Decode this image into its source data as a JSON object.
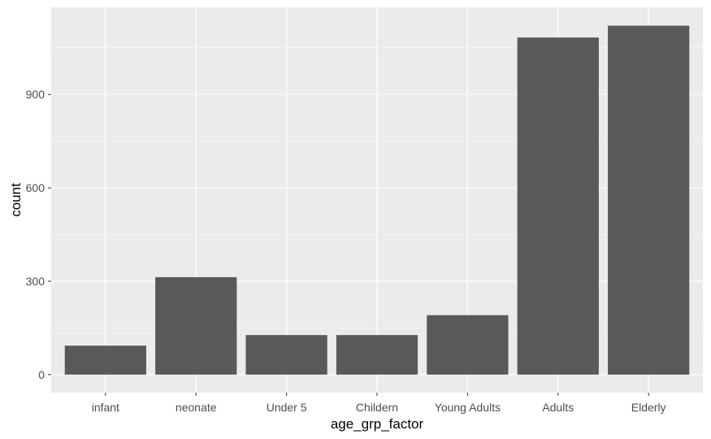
{
  "chart_data": {
    "type": "bar",
    "categories": [
      "infant",
      "neonate",
      "Under 5",
      "Childern",
      "Young Adults",
      "Adults",
      "Elderly"
    ],
    "values": [
      93,
      313,
      127,
      127,
      191,
      1083,
      1121
    ],
    "xlabel": "age_grp_factor",
    "ylabel": "count",
    "ylim": [
      -58,
      1180
    ],
    "yticks": [
      0,
      300,
      600,
      900
    ],
    "grid": true,
    "colors": {
      "panel": "#ebebeb",
      "grid_major": "#ffffff",
      "bar": "#595959",
      "tick_text": "#4d4d4d",
      "axis_title": "#000000"
    }
  }
}
